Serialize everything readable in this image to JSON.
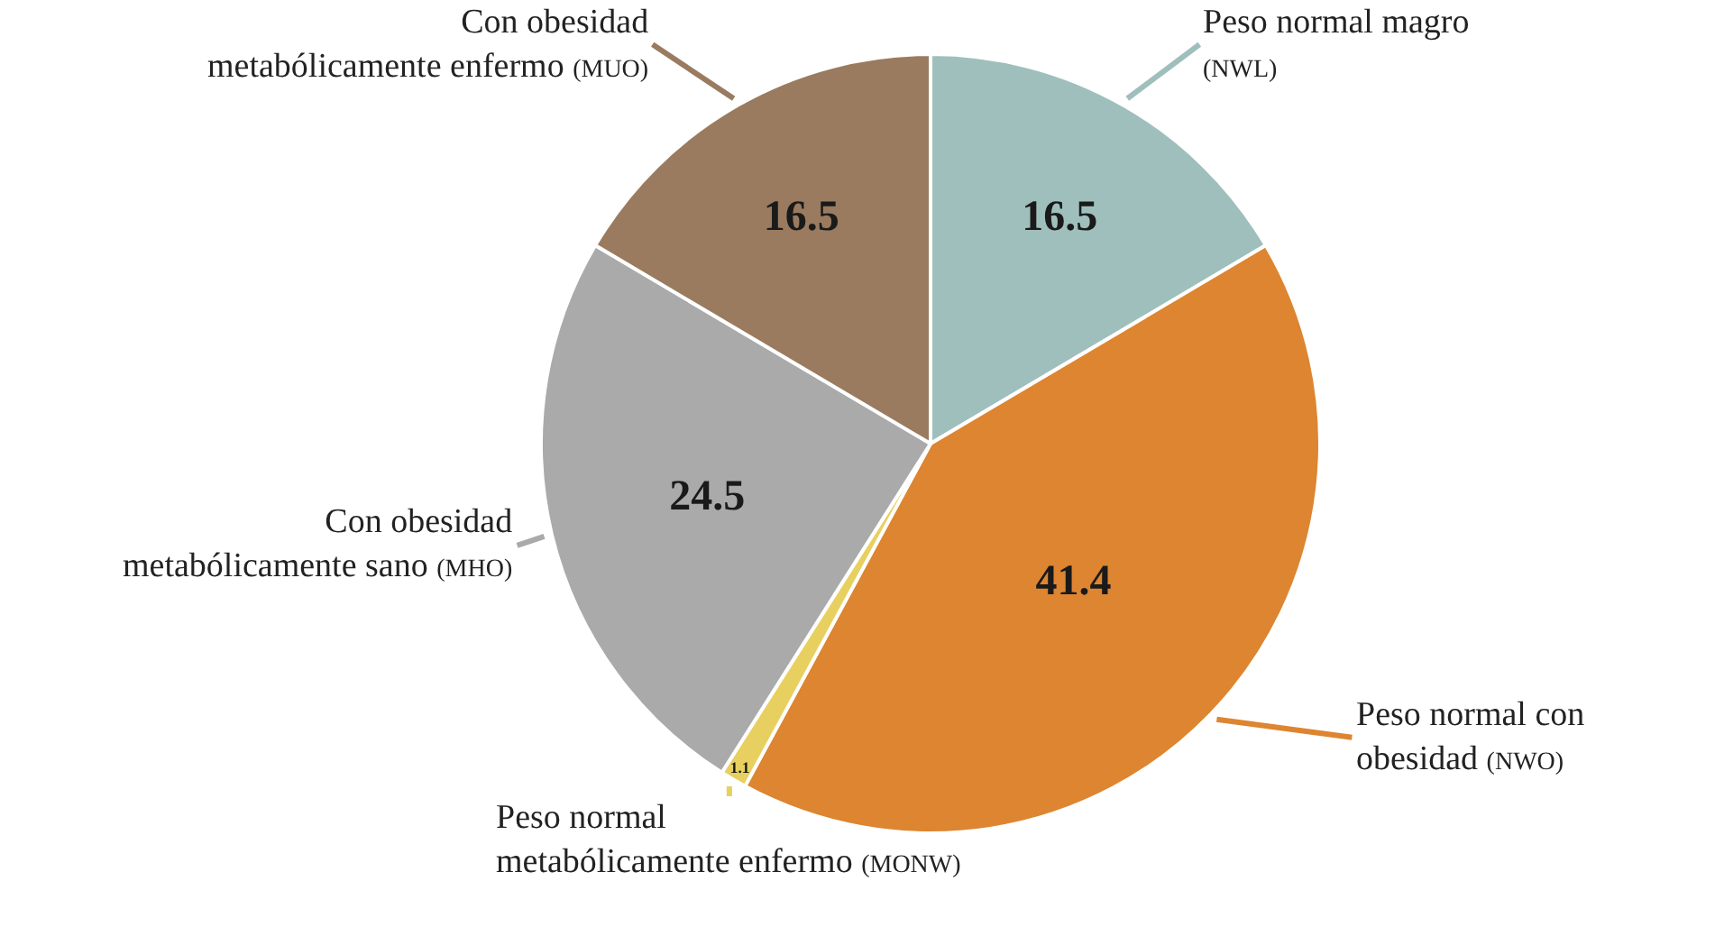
{
  "chart_data": {
    "type": "pie",
    "categories": [
      "Peso normal magro (NWL)",
      "Peso normal con obesidad (NWO)",
      "Peso normal metabólicamente enfermo (MONW)",
      "Con obesidad metabólicamente sano (MHO)",
      "Con obesidad metabólicamente enfermo (MUO)"
    ],
    "values": [
      16.5,
      41.4,
      1.1,
      24.5,
      16.5
    ],
    "colors": [
      "#9fbfbc",
      "#dd8530",
      "#e8d060",
      "#aaaaaa",
      "#9a7b5f"
    ],
    "data_labels": true
  }
}
